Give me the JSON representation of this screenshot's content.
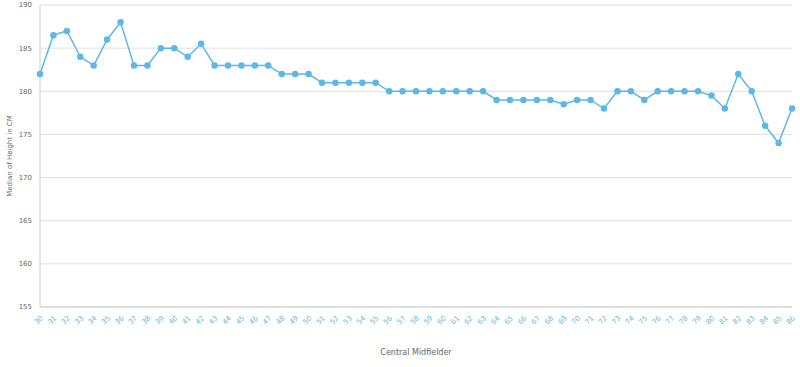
{
  "chart_data": {
    "type": "line",
    "x_label": "Central Midfielder",
    "y_label": "Median of Height in CM",
    "categories": [
      "30",
      "31",
      "32",
      "33",
      "34",
      "35",
      "36",
      "37",
      "38",
      "39",
      "40",
      "41",
      "42",
      "43",
      "44",
      "45",
      "46",
      "47",
      "48",
      "49",
      "50",
      "51",
      "52",
      "53",
      "54",
      "55",
      "56",
      "57",
      "58",
      "59",
      "60",
      "61",
      "62",
      "63",
      "64",
      "65",
      "66",
      "67",
      "68",
      "69",
      "70",
      "71",
      "72",
      "73",
      "74",
      "75",
      "76",
      "77",
      "78",
      "79",
      "80",
      "81",
      "82",
      "83",
      "84",
      "85",
      "86"
    ],
    "values": [
      182,
      186.5,
      187,
      184,
      183,
      186,
      188,
      183,
      183,
      185,
      185,
      184,
      185.5,
      183,
      183,
      183,
      183,
      183,
      182,
      182,
      182,
      181,
      181,
      181,
      181,
      181,
      180,
      180,
      180,
      180,
      180,
      180,
      180,
      180,
      179,
      179,
      179,
      179,
      179,
      178.5,
      179,
      179,
      178,
      180,
      180,
      179,
      180,
      180,
      180,
      180,
      179.5,
      178,
      182,
      180,
      176,
      174,
      178
    ],
    "color": "#5cb8e6",
    "ylim": [
      155,
      190
    ],
    "yticks": [
      155,
      160,
      165,
      170,
      175,
      180,
      185,
      190
    ],
    "grid": true,
    "marker": "circle"
  }
}
